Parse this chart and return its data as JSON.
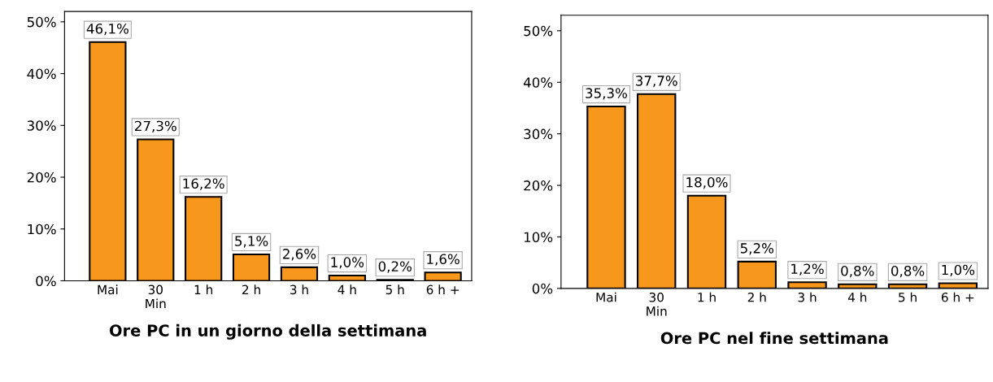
{
  "chart_data": [
    {
      "type": "bar",
      "xlabel": "Ore PC in un giorno della settimana",
      "categories": [
        "Mai",
        "30\nMin",
        "1 h",
        "2 h",
        "3 h",
        "4 h",
        "5 h",
        "6 h +"
      ],
      "values": [
        46.1,
        27.3,
        16.2,
        5.1,
        2.6,
        1.0,
        0.2,
        1.6
      ],
      "color": "#f7981d",
      "value_labels": [
        "46,1%",
        "27,3%",
        "16,2%",
        "5,1%",
        "2,6%",
        "1,0%",
        "0,2%",
        "1,6%"
      ],
      "ylim": [
        0,
        52
      ],
      "yticks": [
        {
          "value": 0,
          "label": "0%"
        },
        {
          "value": 10,
          "label": "10%"
        },
        {
          "value": 20,
          "label": "20%"
        },
        {
          "value": 30,
          "label": "30%"
        },
        {
          "value": 40,
          "label": "40%"
        },
        {
          "value": 50,
          "label": "50%"
        }
      ],
      "grid": false,
      "legend": false
    },
    {
      "type": "bar",
      "xlabel": "Ore PC nel fine settimana",
      "categories": [
        "Mai",
        "30\nMin",
        "1 h",
        "2 h",
        "3 h",
        "4 h",
        "5 h",
        "6 h +"
      ],
      "values": [
        35.3,
        37.7,
        18.0,
        5.2,
        1.2,
        0.8,
        0.8,
        1.0
      ],
      "color": "#f7981d",
      "value_labels": [
        "35,3%",
        "37,7%",
        "18,0%",
        "5,2%",
        "1,2%",
        "0,8%",
        "0,8%",
        "1,0%"
      ],
      "ylim": [
        0,
        53
      ],
      "yticks": [
        {
          "value": 0,
          "label": "0%"
        },
        {
          "value": 10,
          "label": "10%"
        },
        {
          "value": 20,
          "label": "20%"
        },
        {
          "value": 30,
          "label": "30%"
        },
        {
          "value": 40,
          "label": "40%"
        },
        {
          "value": 50,
          "label": "50%"
        }
      ],
      "grid": false,
      "legend": false
    }
  ]
}
